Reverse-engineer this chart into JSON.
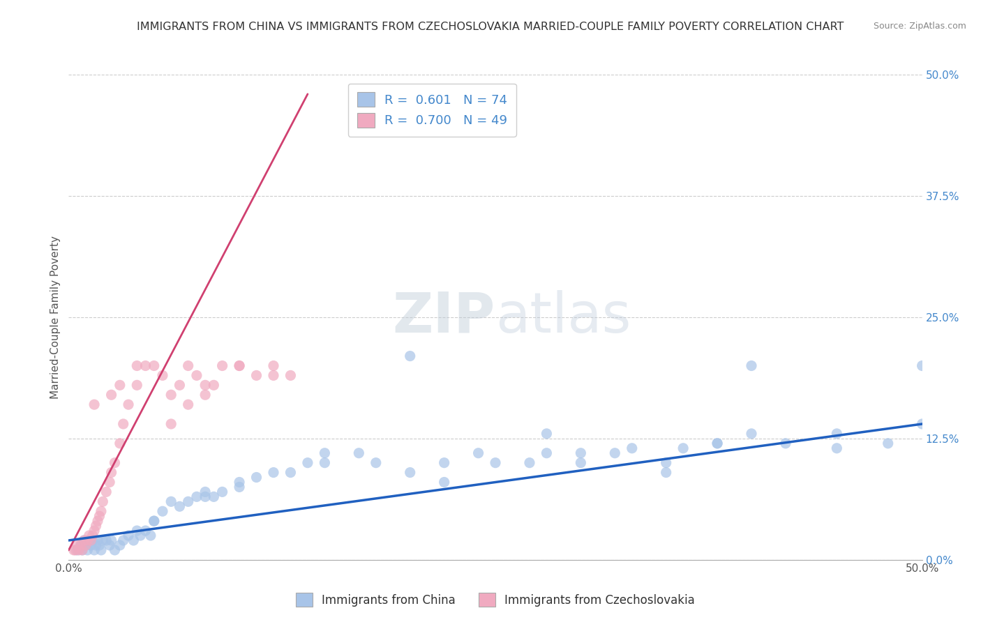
{
  "title": "IMMIGRANTS FROM CHINA VS IMMIGRANTS FROM CZECHOSLOVAKIA MARRIED-COUPLE FAMILY POVERTY CORRELATION CHART",
  "source": "Source: ZipAtlas.com",
  "ylabel": "Married-Couple Family Poverty",
  "legend_china_R": "0.601",
  "legend_china_N": "74",
  "legend_czech_R": "0.700",
  "legend_czech_N": "49",
  "legend_label_china": "Immigrants from China",
  "legend_label_czech": "Immigrants from Czechoslovakia",
  "china_color": "#a8c4e8",
  "czech_color": "#f0aac0",
  "china_line_color": "#2060c0",
  "czech_line_color": "#d04070",
  "ytick_labels": [
    "0.0%",
    "12.5%",
    "25.0%",
    "37.5%",
    "50.0%"
  ],
  "ytick_values": [
    0.0,
    0.125,
    0.25,
    0.375,
    0.5
  ],
  "xtick_labels": [
    "0.0%",
    "50.0%"
  ],
  "xtick_values": [
    0.0,
    0.5
  ],
  "xlim": [
    0.0,
    0.5
  ],
  "ylim": [
    0.0,
    0.5
  ],
  "china_scatter_x": [
    0.005,
    0.007,
    0.008,
    0.009,
    0.01,
    0.011,
    0.012,
    0.013,
    0.014,
    0.015,
    0.016,
    0.017,
    0.018,
    0.019,
    0.02,
    0.022,
    0.024,
    0.025,
    0.027,
    0.03,
    0.032,
    0.035,
    0.038,
    0.04,
    0.042,
    0.045,
    0.048,
    0.05,
    0.055,
    0.06,
    0.065,
    0.07,
    0.075,
    0.08,
    0.085,
    0.09,
    0.1,
    0.11,
    0.12,
    0.13,
    0.14,
    0.15,
    0.17,
    0.18,
    0.2,
    0.22,
    0.24,
    0.25,
    0.27,
    0.28,
    0.3,
    0.32,
    0.33,
    0.35,
    0.36,
    0.38,
    0.4,
    0.42,
    0.45,
    0.48,
    0.5,
    0.2,
    0.28,
    0.35,
    0.4,
    0.45,
    0.38,
    0.3,
    0.22,
    0.15,
    0.1,
    0.08,
    0.05,
    0.5
  ],
  "china_scatter_y": [
    0.01,
    0.015,
    0.01,
    0.02,
    0.015,
    0.01,
    0.02,
    0.015,
    0.02,
    0.01,
    0.015,
    0.02,
    0.015,
    0.01,
    0.02,
    0.02,
    0.015,
    0.02,
    0.01,
    0.015,
    0.02,
    0.025,
    0.02,
    0.03,
    0.025,
    0.03,
    0.025,
    0.04,
    0.05,
    0.06,
    0.055,
    0.06,
    0.065,
    0.07,
    0.065,
    0.07,
    0.08,
    0.085,
    0.09,
    0.09,
    0.1,
    0.1,
    0.11,
    0.1,
    0.09,
    0.1,
    0.11,
    0.1,
    0.1,
    0.11,
    0.1,
    0.11,
    0.115,
    0.1,
    0.115,
    0.12,
    0.13,
    0.12,
    0.13,
    0.12,
    0.14,
    0.21,
    0.13,
    0.09,
    0.2,
    0.115,
    0.12,
    0.11,
    0.08,
    0.11,
    0.075,
    0.065,
    0.04,
    0.2
  ],
  "czech_scatter_x": [
    0.003,
    0.004,
    0.005,
    0.006,
    0.007,
    0.008,
    0.009,
    0.01,
    0.011,
    0.012,
    0.013,
    0.014,
    0.015,
    0.016,
    0.017,
    0.018,
    0.019,
    0.02,
    0.022,
    0.024,
    0.025,
    0.027,
    0.03,
    0.032,
    0.035,
    0.04,
    0.045,
    0.05,
    0.055,
    0.06,
    0.065,
    0.07,
    0.075,
    0.08,
    0.085,
    0.09,
    0.1,
    0.11,
    0.12,
    0.13,
    0.025,
    0.03,
    0.04,
    0.06,
    0.08,
    0.1,
    0.12,
    0.07,
    0.015
  ],
  "czech_scatter_y": [
    0.01,
    0.01,
    0.015,
    0.01,
    0.015,
    0.01,
    0.02,
    0.015,
    0.02,
    0.025,
    0.02,
    0.025,
    0.03,
    0.035,
    0.04,
    0.045,
    0.05,
    0.06,
    0.07,
    0.08,
    0.09,
    0.1,
    0.12,
    0.14,
    0.16,
    0.18,
    0.2,
    0.2,
    0.19,
    0.17,
    0.18,
    0.2,
    0.19,
    0.17,
    0.18,
    0.2,
    0.2,
    0.19,
    0.2,
    0.19,
    0.17,
    0.18,
    0.2,
    0.14,
    0.18,
    0.2,
    0.19,
    0.16,
    0.16
  ],
  "czech_line_x0": 0.0,
  "czech_line_y0": 0.01,
  "czech_line_x1": 0.14,
  "czech_line_y1": 0.48,
  "china_line_x0": 0.0,
  "china_line_y0": 0.02,
  "china_line_x1": 0.5,
  "china_line_y1": 0.14
}
